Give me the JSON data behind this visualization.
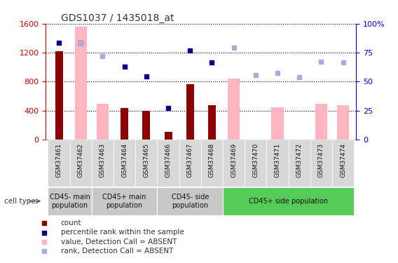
{
  "title": "GDS1037 / 1435018_at",
  "samples": [
    "GSM37461",
    "GSM37462",
    "GSM37463",
    "GSM37464",
    "GSM37465",
    "GSM37466",
    "GSM37467",
    "GSM37468",
    "GSM37469",
    "GSM37470",
    "GSM37471",
    "GSM37472",
    "GSM37473",
    "GSM37474"
  ],
  "count_values": [
    1220,
    null,
    null,
    430,
    400,
    100,
    760,
    470,
    null,
    null,
    null,
    null,
    null,
    null
  ],
  "absent_value_bars": [
    null,
    1560,
    490,
    null,
    null,
    null,
    null,
    null,
    840,
    null,
    440,
    null,
    490,
    470
  ],
  "percentile_rank_scaled": [
    1340,
    1340,
    null,
    1010,
    870,
    430,
    1230,
    1060,
    null,
    null,
    null,
    null,
    null,
    null
  ],
  "absent_rank_scaled": [
    null,
    1340,
    1150,
    null,
    null,
    null,
    null,
    null,
    1270,
    890,
    920,
    860,
    1070,
    1060
  ],
  "cell_type_groups": [
    {
      "label": "CD45- main\npopulation",
      "start": 0,
      "end": 1,
      "color": "#c8c8c8"
    },
    {
      "label": "CD45+ main\npopulation",
      "start": 2,
      "end": 4,
      "color": "#c8c8c8"
    },
    {
      "label": "CD45- side\npopulation",
      "start": 5,
      "end": 7,
      "color": "#c8c8c8"
    },
    {
      "label": "CD45+ side population",
      "start": 8,
      "end": 13,
      "color": "#55cc55"
    }
  ],
  "ylim_left": [
    0,
    1600
  ],
  "ylim_right": [
    0,
    100
  ],
  "y_ticks_left": [
    0,
    400,
    800,
    1200,
    1600
  ],
  "y_tick_labels_left": [
    "0",
    "400",
    "800",
    "1200",
    "1600"
  ],
  "y_ticks_right_vals": [
    0,
    25,
    50,
    75,
    100
  ],
  "y_tick_labels_right": [
    "0",
    "25",
    "50",
    "75",
    "100%"
  ],
  "dark_red": "#8B0000",
  "light_pink": "#FFB6C1",
  "dark_blue": "#00008B",
  "light_blue": "#AAAADD",
  "bg_color": "#FFFFFF",
  "left_axis_color": "#CC0000",
  "right_axis_color": "#0000CC",
  "legend_items": [
    {
      "color": "#8B0000",
      "label": "count"
    },
    {
      "color": "#00008B",
      "label": "percentile rank within the sample"
    },
    {
      "color": "#FFB6C1",
      "label": "value, Detection Call = ABSENT"
    },
    {
      "color": "#AAAADD",
      "label": "rank, Detection Call = ABSENT"
    }
  ]
}
